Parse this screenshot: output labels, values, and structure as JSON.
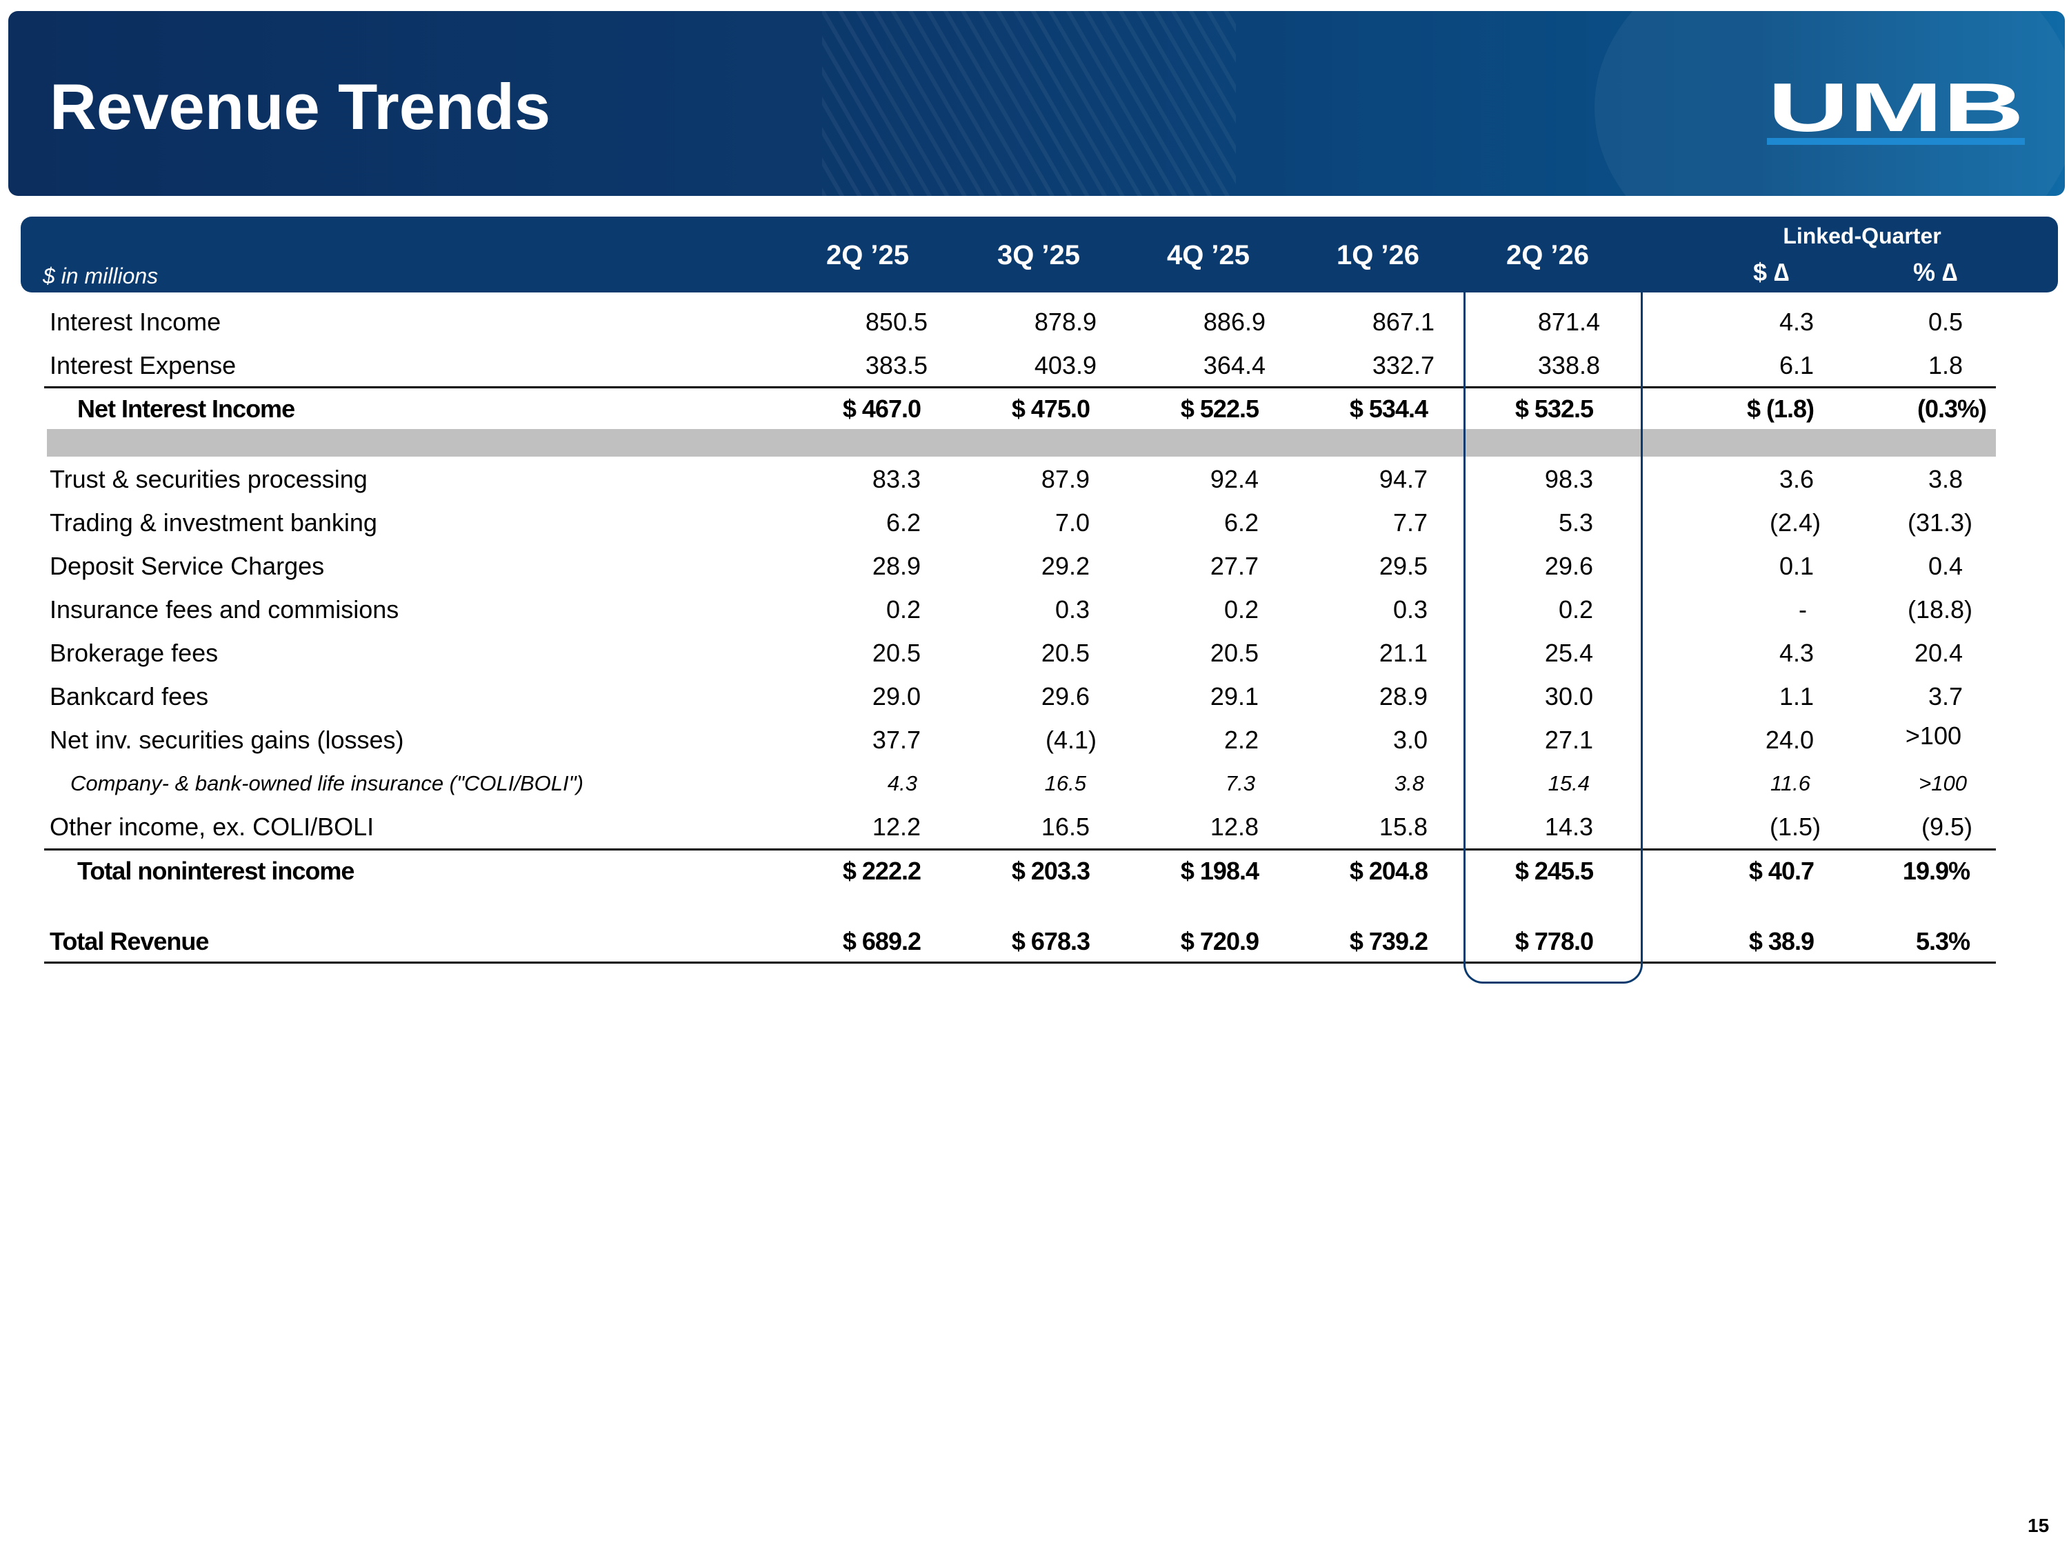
{
  "title": "Revenue Trends",
  "logo_text": "UMB",
  "brand_colors": {
    "navy": "#0b3a6e",
    "logo_underline": "#1e88d0"
  },
  "units_note": "$ in millions",
  "columns": [
    "2Q ’25",
    "3Q ’25",
    "4Q ’25",
    "1Q ’26",
    "2Q ’26"
  ],
  "linked_quarter": {
    "label": "Linked-Quarter",
    "dollar_change": "$ ∆",
    "percent_change": "% ∆"
  },
  "rows": [
    {
      "label": "Interest Income",
      "values": [
        "850.5",
        "878.9",
        "886.9",
        "867.1",
        "871.4"
      ],
      "dollar_change": "4.3",
      "percent_change": "0.5"
    },
    {
      "label": "Interest Expense",
      "values": [
        "383.5",
        "403.9",
        "364.4",
        "332.7",
        "338.8"
      ],
      "dollar_change": "6.1",
      "percent_change": "1.8"
    },
    {
      "label": "Net Interest Income",
      "values": [
        "$ 467.0",
        "$ 475.0",
        "$ 522.5",
        "$ 534.4",
        "$ 532.5"
      ],
      "dollar_change": "$ (1.8)",
      "percent_change": "(0.3%)"
    },
    {
      "label": "Trust & securities processing",
      "values": [
        "83.3",
        "87.9",
        "92.4",
        "94.7",
        "98.3"
      ],
      "dollar_change": "3.6",
      "percent_change": "3.8"
    },
    {
      "label": "Trading & investment banking",
      "values": [
        "6.2",
        "7.0",
        "6.2",
        "7.7",
        "5.3"
      ],
      "dollar_change": "(2.4)",
      "percent_change": "(31.3)"
    },
    {
      "label": "Deposit Service Charges",
      "values": [
        "28.9",
        "29.2",
        "27.7",
        "29.5",
        "29.6"
      ],
      "dollar_change": "0.1",
      "percent_change": "0.4"
    },
    {
      "label": "Insurance fees and commisions",
      "values": [
        "0.2",
        "0.3",
        "0.2",
        "0.3",
        "0.2"
      ],
      "dollar_change": "-",
      "percent_change": "(18.8)"
    },
    {
      "label": "Brokerage fees",
      "values": [
        "20.5",
        "20.5",
        "20.5",
        "21.1",
        "25.4"
      ],
      "dollar_change": "4.3",
      "percent_change": "20.4"
    },
    {
      "label": "Bankcard fees",
      "values": [
        "29.0",
        "29.6",
        "29.1",
        "28.9",
        "30.0"
      ],
      "dollar_change": "1.1",
      "percent_change": "3.7"
    },
    {
      "label": "Net inv. securities gains (losses)",
      "values": [
        "37.7",
        "(4.1)",
        "2.2",
        "3.0",
        "27.1"
      ],
      "dollar_change": "24.0",
      "percent_change": ">100"
    },
    {
      "label": "Company- & bank-owned life insurance (\"COLI/BOLI\")",
      "values": [
        "4.3",
        "16.5",
        "7.3",
        "3.8",
        "15.4"
      ],
      "dollar_change": "11.6",
      "percent_change": ">100"
    },
    {
      "label": "Other income, ex. COLI/BOLI",
      "values": [
        "12.2",
        "16.5",
        "12.8",
        "15.8",
        "14.3"
      ],
      "dollar_change": "(1.5)",
      "percent_change": "(9.5)"
    },
    {
      "label": "Total noninterest income",
      "values": [
        "$ 222.2",
        "$ 203.3",
        "$ 198.4",
        "$ 204.8",
        "$ 245.5"
      ],
      "dollar_change": "$ 40.7",
      "percent_change": "19.9%"
    },
    {
      "label": "Total Revenue",
      "values": [
        "$ 689.2",
        "$ 678.3",
        "$ 720.9",
        "$ 739.2",
        "$ 778.0"
      ],
      "dollar_change": "$ 38.9",
      "percent_change": "5.3%"
    }
  ],
  "page_number": "15"
}
